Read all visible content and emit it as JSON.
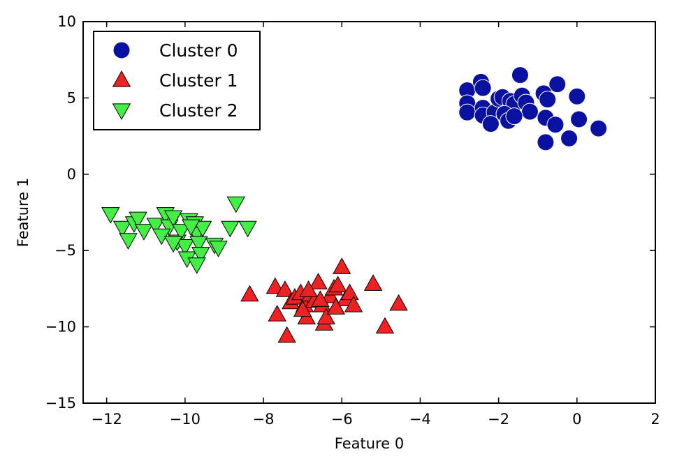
{
  "chart_data": {
    "type": "scatter",
    "title": "",
    "xlabel": "Feature 0",
    "ylabel": "Feature 1",
    "xlim": [
      -12.6,
      2
    ],
    "ylim": [
      -15,
      10
    ],
    "xticks": [
      -12,
      -10,
      -8,
      -6,
      -4,
      -2,
      0,
      2
    ],
    "yticks": [
      -15,
      -10,
      -5,
      0,
      5,
      10
    ],
    "xtick_labels": [
      "−12",
      "−10",
      "−8",
      "−6",
      "−4",
      "−2",
      "0",
      "2"
    ],
    "ytick_labels": [
      "−15",
      "−10",
      "−5",
      "0",
      "5",
      "10"
    ],
    "grid": false,
    "legend": {
      "position": "top-left"
    },
    "series": [
      {
        "name": "Cluster 0",
        "marker": "circle",
        "color": "#0a10a0",
        "edgecolor": "#ffffff",
        "points": [
          [
            -2.8,
            5.5
          ],
          [
            -2.45,
            6.05
          ],
          [
            -2.4,
            5.65
          ],
          [
            -1.45,
            6.5
          ],
          [
            -0.5,
            5.9
          ],
          [
            -2.8,
            4.65
          ],
          [
            -2.8,
            4.05
          ],
          [
            -2.4,
            4.35
          ],
          [
            -2.4,
            3.85
          ],
          [
            -2.1,
            4.05
          ],
          [
            -2.0,
            4.95
          ],
          [
            -1.9,
            5.05
          ],
          [
            -1.7,
            4.8
          ],
          [
            -1.6,
            4.6
          ],
          [
            -1.4,
            5.15
          ],
          [
            -1.3,
            4.7
          ],
          [
            -1.2,
            4.1
          ],
          [
            -1.85,
            3.95
          ],
          [
            -1.75,
            3.5
          ],
          [
            -1.6,
            3.8
          ],
          [
            -2.2,
            3.3
          ],
          [
            -0.85,
            5.3
          ],
          [
            -0.75,
            4.9
          ],
          [
            -0.8,
            3.7
          ],
          [
            -0.55,
            3.25
          ],
          [
            0.0,
            5.1
          ],
          [
            0.05,
            3.6
          ],
          [
            0.55,
            3.0
          ],
          [
            -0.8,
            2.1
          ],
          [
            -0.2,
            2.35
          ]
        ]
      },
      {
        "name": "Cluster 1",
        "marker": "triangle-up",
        "color": "#ee2222",
        "edgecolor": "#000000",
        "points": [
          [
            -8.35,
            -7.9
          ],
          [
            -7.7,
            -7.4
          ],
          [
            -7.45,
            -7.6
          ],
          [
            -7.65,
            -9.2
          ],
          [
            -7.4,
            -10.6
          ],
          [
            -7.3,
            -8.4
          ],
          [
            -7.2,
            -8.1
          ],
          [
            -7.05,
            -7.8
          ],
          [
            -6.95,
            -8.6
          ],
          [
            -6.9,
            -9.4
          ],
          [
            -6.8,
            -7.9
          ],
          [
            -6.7,
            -8.3
          ],
          [
            -6.6,
            -7.1
          ],
          [
            -6.5,
            -8.6
          ],
          [
            -6.45,
            -9.8
          ],
          [
            -6.4,
            -9.4
          ],
          [
            -6.3,
            -8.0
          ],
          [
            -6.2,
            -7.5
          ],
          [
            -6.1,
            -7.3
          ],
          [
            -6.0,
            -6.1
          ],
          [
            -5.9,
            -8.2
          ],
          [
            -5.8,
            -7.8
          ],
          [
            -5.7,
            -8.6
          ],
          [
            -5.2,
            -7.2
          ],
          [
            -4.9,
            -10.0
          ],
          [
            -4.55,
            -8.5
          ],
          [
            -6.85,
            -7.6
          ],
          [
            -7.0,
            -8.9
          ],
          [
            -6.15,
            -8.75
          ],
          [
            -6.55,
            -8.25
          ]
        ]
      },
      {
        "name": "Cluster 2",
        "marker": "triangle-down",
        "color": "#44ee44",
        "edgecolor": "#000000",
        "points": [
          [
            -11.9,
            -2.6
          ],
          [
            -11.6,
            -3.5
          ],
          [
            -11.45,
            -4.3
          ],
          [
            -11.3,
            -3.2
          ],
          [
            -11.2,
            -2.9
          ],
          [
            -11.05,
            -3.7
          ],
          [
            -10.75,
            -3.3
          ],
          [
            -10.5,
            -2.6
          ],
          [
            -10.4,
            -3.4
          ],
          [
            -10.3,
            -2.8
          ],
          [
            -10.2,
            -4.4
          ],
          [
            -10.1,
            -3.7
          ],
          [
            -10.0,
            -4.7
          ],
          [
            -9.95,
            -5.5
          ],
          [
            -9.9,
            -3.0
          ],
          [
            -9.8,
            -3.6
          ],
          [
            -9.75,
            -3.2
          ],
          [
            -9.7,
            -3.9
          ],
          [
            -9.65,
            -4.5
          ],
          [
            -9.6,
            -5.2
          ],
          [
            -9.55,
            -3.5
          ],
          [
            -9.7,
            -5.9
          ],
          [
            -9.25,
            -4.6
          ],
          [
            -9.15,
            -4.8
          ],
          [
            -8.85,
            -3.5
          ],
          [
            -8.7,
            -1.9
          ],
          [
            -8.4,
            -3.5
          ],
          [
            -10.6,
            -4.0
          ],
          [
            -10.3,
            -4.5
          ],
          [
            -9.85,
            -3.4
          ]
        ]
      }
    ]
  }
}
